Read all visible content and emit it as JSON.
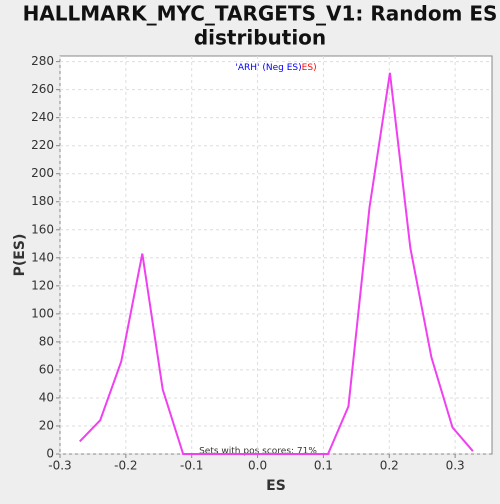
{
  "chart_data": {
    "type": "line",
    "title": "HALLMARK_MYC_TARGETS_V1: Random ES distribution",
    "x_label": "ES",
    "y_label": "P(ES)",
    "x": [
      -0.27,
      -0.239,
      -0.207,
      -0.175,
      -0.144,
      -0.113,
      -0.081,
      -0.05,
      -0.018,
      0.013,
      0.044,
      0.076,
      0.107,
      0.138,
      0.17,
      0.201,
      0.232,
      0.264,
      0.296,
      0.327
    ],
    "series": [
      {
        "color": "#f040f0",
        "values": [
          9,
          24,
          66,
          143,
          46,
          0,
          0,
          0,
          0,
          0,
          0,
          0,
          0,
          34,
          176,
          272,
          147,
          69,
          19,
          2
        ]
      }
    ],
    "xlim": [
      -0.3,
      0.356
    ],
    "ylim": [
      0,
      284
    ],
    "xticks": [
      -0.3,
      -0.2,
      -0.1,
      {
        "value": 0,
        "label": "0.0"
      },
      0.1,
      0.2,
      0.3
    ],
    "yticks": [
      0,
      20,
      40,
      60,
      80,
      100,
      120,
      140,
      160,
      180,
      200,
      220,
      240,
      260,
      280
    ],
    "grid": true,
    "legend": [
      {
        "text": "'ARH' (Neg ES)",
        "color": "#0000ff"
      },
      {
        "text": "ES)",
        "color": "#ff0000"
      }
    ],
    "annotation": "Sets with pos scores: 71%"
  }
}
